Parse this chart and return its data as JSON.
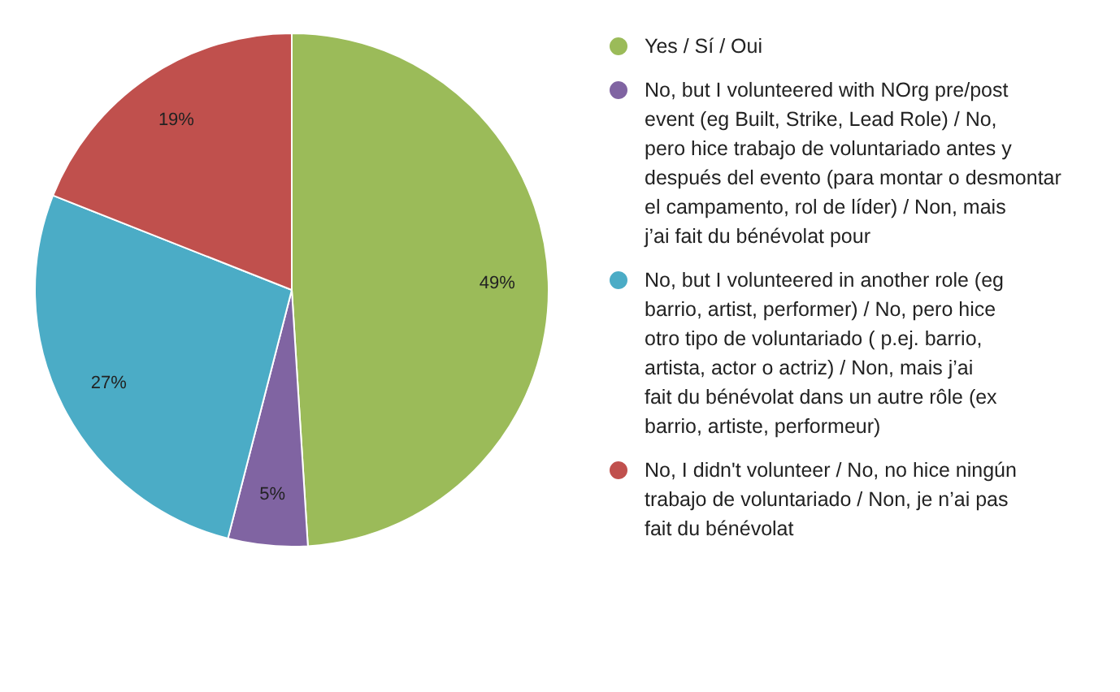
{
  "chart_data": {
    "type": "pie",
    "categories": [
      "Yes / Sí / Oui",
      "No, but I volunteered with NOrg pre/post event (eg Built, Strike, Lead Role) / No, pero hice trabajo de voluntariado antes y después del evento (para montar o desmontar el campamento, rol de líder) / Non, mais j’ai fait du bénévolat pour",
      "No, but I volunteered in another role (eg barrio, artist, performer) / No, pero hice otro tipo de voluntariado ( p.ej. barrio, artista, actor o actriz) / Non, mais j’ai fait du bénévolat dans un autre rôle (ex barrio, artiste, performeur)",
      "No, I didn't volunteer / No, no hice ningún trabajo de voluntariado / Non, je n’ai pas fait du bénévolat"
    ],
    "values": [
      49,
      5,
      27,
      19
    ],
    "colors": [
      "#9bbb59",
      "#8064a2",
      "#4bacc6",
      "#c0504d"
    ],
    "value_labels": [
      "49%",
      "5%",
      "27%",
      "19%"
    ],
    "legend": "right"
  }
}
